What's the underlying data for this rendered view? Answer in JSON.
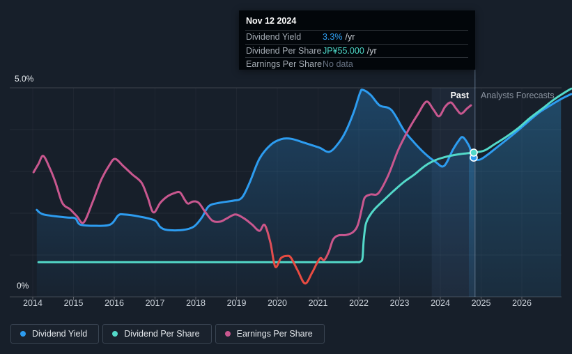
{
  "tooltip": {
    "date": "Nov 12 2024",
    "rows": [
      {
        "label": "Dividend Yield",
        "value": "3.3%",
        "suffix": "/yr"
      },
      {
        "label": "Dividend Per Share",
        "value": "JP¥55.000",
        "suffix": "/yr"
      },
      {
        "label": "Earnings Per Share",
        "value": "No data",
        "suffix": ""
      }
    ]
  },
  "chart": {
    "y_top_label": "5.0%",
    "y_bottom_label": "0%",
    "past_label": "Past",
    "forecast_label": "Analysts Forecasts"
  },
  "legend": {
    "items": [
      {
        "label": "Dividend Yield",
        "color": "#2d9cf0"
      },
      {
        "label": "Dividend Per Share",
        "color": "#53d9c9"
      },
      {
        "label": "Earnings Per Share",
        "color": "#c9578f"
      }
    ]
  },
  "chart_data": {
    "type": "line",
    "x_axis": {
      "ticks": [
        2014,
        2015,
        2016,
        2017,
        2018,
        2019,
        2020,
        2021,
        2022,
        2023,
        2024,
        2025,
        2026
      ],
      "range": [
        2013.2,
        2027.2
      ]
    },
    "y_axis": {
      "unit": "%",
      "range": [
        0,
        5
      ],
      "gridline_step": 1
    },
    "divider_year": 2024.85,
    "plot_right_year": 2026.96,
    "hover_band_years": [
      2023.79,
      2024.85
    ],
    "markers": [
      {
        "name": "dividend-yield",
        "year": 2024.82,
        "value": 3.33,
        "color": "#2d9cf0"
      },
      {
        "name": "dividend-per-share",
        "year": 2024.82,
        "value": 3.45,
        "color": "#53d9c9"
      }
    ],
    "series": [
      {
        "name": "Dividend Yield",
        "color": "#2d9cf0",
        "fill": true,
        "points": [
          [
            2014.1,
            2.08
          ],
          [
            2014.27,
            1.97
          ],
          [
            2014.82,
            1.9
          ],
          [
            2015.04,
            1.88
          ],
          [
            2015.16,
            1.73
          ],
          [
            2015.5,
            1.7
          ],
          [
            2015.9,
            1.73
          ],
          [
            2016.1,
            1.95
          ],
          [
            2016.24,
            1.97
          ],
          [
            2016.62,
            1.92
          ],
          [
            2016.99,
            1.83
          ],
          [
            2017.13,
            1.67
          ],
          [
            2017.3,
            1.6
          ],
          [
            2017.68,
            1.6
          ],
          [
            2017.95,
            1.68
          ],
          [
            2018.15,
            1.9
          ],
          [
            2018.32,
            2.17
          ],
          [
            2018.58,
            2.25
          ],
          [
            2018.92,
            2.3
          ],
          [
            2019.13,
            2.37
          ],
          [
            2019.32,
            2.73
          ],
          [
            2019.56,
            3.3
          ],
          [
            2019.83,
            3.63
          ],
          [
            2020.09,
            3.77
          ],
          [
            2020.34,
            3.78
          ],
          [
            2020.68,
            3.68
          ],
          [
            2021.03,
            3.57
          ],
          [
            2021.28,
            3.47
          ],
          [
            2021.52,
            3.7
          ],
          [
            2021.69,
            3.98
          ],
          [
            2021.88,
            4.43
          ],
          [
            2022.03,
            4.88
          ],
          [
            2022.1,
            4.95
          ],
          [
            2022.29,
            4.83
          ],
          [
            2022.51,
            4.58
          ],
          [
            2022.8,
            4.47
          ],
          [
            2023.11,
            3.98
          ],
          [
            2023.37,
            3.68
          ],
          [
            2023.62,
            3.43
          ],
          [
            2023.88,
            3.23
          ],
          [
            2024.09,
            3.13
          ],
          [
            2024.31,
            3.52
          ],
          [
            2024.44,
            3.72
          ],
          [
            2024.55,
            3.82
          ],
          [
            2024.7,
            3.62
          ],
          [
            2024.82,
            3.33
          ],
          [
            2024.96,
            3.28
          ],
          [
            2025.16,
            3.4
          ],
          [
            2025.42,
            3.6
          ],
          [
            2025.68,
            3.8
          ],
          [
            2025.93,
            4.0
          ],
          [
            2026.19,
            4.22
          ],
          [
            2026.44,
            4.42
          ],
          [
            2026.7,
            4.58
          ],
          [
            2026.96,
            4.73
          ],
          [
            2027.21,
            4.85
          ]
        ]
      },
      {
        "name": "Dividend Per Share",
        "color": "#53d9c9",
        "fill": false,
        "points": [
          [
            2014.14,
            0.83
          ],
          [
            2015.0,
            0.83
          ],
          [
            2016.0,
            0.83
          ],
          [
            2017.0,
            0.83
          ],
          [
            2018.0,
            0.83
          ],
          [
            2019.0,
            0.83
          ],
          [
            2020.0,
            0.83
          ],
          [
            2021.0,
            0.83
          ],
          [
            2021.9,
            0.83
          ],
          [
            2022.03,
            0.84
          ],
          [
            2022.09,
            0.93
          ],
          [
            2022.12,
            1.35
          ],
          [
            2022.17,
            1.73
          ],
          [
            2022.26,
            1.93
          ],
          [
            2022.39,
            2.1
          ],
          [
            2022.6,
            2.3
          ],
          [
            2022.85,
            2.53
          ],
          [
            2023.11,
            2.75
          ],
          [
            2023.37,
            2.93
          ],
          [
            2023.62,
            3.13
          ],
          [
            2023.88,
            3.27
          ],
          [
            2024.14,
            3.35
          ],
          [
            2024.39,
            3.4
          ],
          [
            2024.62,
            3.43
          ],
          [
            2024.82,
            3.45
          ],
          [
            2025.08,
            3.5
          ],
          [
            2025.33,
            3.65
          ],
          [
            2025.62,
            3.83
          ],
          [
            2025.93,
            4.05
          ],
          [
            2026.19,
            4.27
          ],
          [
            2026.5,
            4.5
          ],
          [
            2026.79,
            4.72
          ],
          [
            2027.04,
            4.88
          ],
          [
            2027.21,
            4.98
          ]
        ]
      },
      {
        "name": "Earnings Per Share",
        "color": "#c9578f",
        "fill": false,
        "negative_color": "#e84b41",
        "negative_span_years": [
          2019.82,
          2021.18
        ],
        "points": [
          [
            2014.02,
            2.98
          ],
          [
            2014.14,
            3.18
          ],
          [
            2014.26,
            3.37
          ],
          [
            2014.43,
            3.05
          ],
          [
            2014.56,
            2.73
          ],
          [
            2014.7,
            2.3
          ],
          [
            2014.79,
            2.17
          ],
          [
            2014.91,
            2.1
          ],
          [
            2015.08,
            1.93
          ],
          [
            2015.25,
            1.78
          ],
          [
            2015.47,
            2.27
          ],
          [
            2015.68,
            2.8
          ],
          [
            2015.88,
            3.15
          ],
          [
            2016.02,
            3.3
          ],
          [
            2016.22,
            3.13
          ],
          [
            2016.44,
            2.93
          ],
          [
            2016.67,
            2.73
          ],
          [
            2016.82,
            2.38
          ],
          [
            2016.96,
            2.02
          ],
          [
            2017.13,
            2.25
          ],
          [
            2017.3,
            2.4
          ],
          [
            2017.47,
            2.48
          ],
          [
            2017.61,
            2.5
          ],
          [
            2017.73,
            2.32
          ],
          [
            2017.81,
            2.23
          ],
          [
            2017.93,
            2.28
          ],
          [
            2018.07,
            2.25
          ],
          [
            2018.24,
            2.02
          ],
          [
            2018.41,
            1.82
          ],
          [
            2018.6,
            1.8
          ],
          [
            2018.75,
            1.87
          ],
          [
            2018.97,
            1.97
          ],
          [
            2019.18,
            1.88
          ],
          [
            2019.38,
            1.73
          ],
          [
            2019.56,
            1.58
          ],
          [
            2019.69,
            1.72
          ],
          [
            2019.83,
            1.3
          ],
          [
            2019.95,
            0.72
          ],
          [
            2020.09,
            0.93
          ],
          [
            2020.24,
            0.98
          ],
          [
            2020.34,
            0.93
          ],
          [
            2020.5,
            0.63
          ],
          [
            2020.68,
            0.32
          ],
          [
            2020.85,
            0.57
          ],
          [
            2020.97,
            0.8
          ],
          [
            2021.06,
            0.93
          ],
          [
            2021.15,
            0.88
          ],
          [
            2021.26,
            1.07
          ],
          [
            2021.37,
            1.37
          ],
          [
            2021.5,
            1.47
          ],
          [
            2021.69,
            1.48
          ],
          [
            2021.86,
            1.55
          ],
          [
            2021.98,
            1.73
          ],
          [
            2022.09,
            2.18
          ],
          [
            2022.15,
            2.38
          ],
          [
            2022.29,
            2.45
          ],
          [
            2022.48,
            2.48
          ],
          [
            2022.72,
            2.9
          ],
          [
            2022.97,
            3.52
          ],
          [
            2023.25,
            4.05
          ],
          [
            2023.45,
            4.37
          ],
          [
            2023.66,
            4.67
          ],
          [
            2023.83,
            4.48
          ],
          [
            2023.97,
            4.32
          ],
          [
            2024.12,
            4.55
          ],
          [
            2024.26,
            4.65
          ],
          [
            2024.39,
            4.5
          ],
          [
            2024.51,
            4.38
          ],
          [
            2024.65,
            4.5
          ],
          [
            2024.75,
            4.58
          ]
        ]
      }
    ]
  }
}
